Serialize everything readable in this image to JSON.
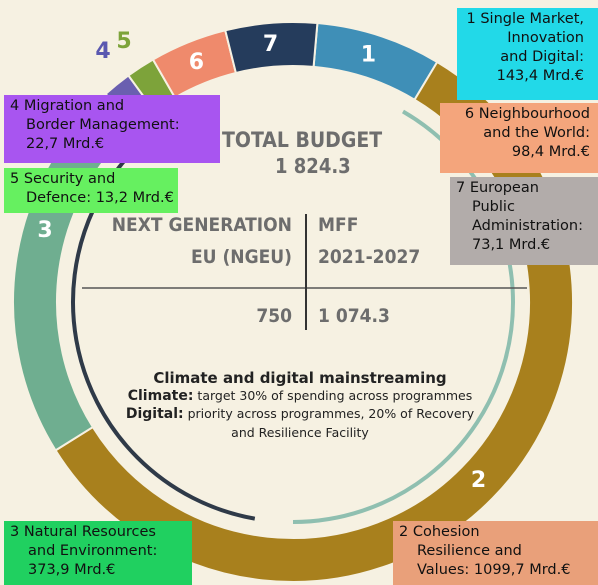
{
  "center": {
    "title": "TOTAL BUDGET",
    "total": "1 824.3",
    "left_head": [
      "NEXT GENERATION",
      "EU (NGEU)"
    ],
    "right_head": [
      "MFF",
      "2021-2027"
    ],
    "left_value": "750",
    "right_value": "1 074.3"
  },
  "mainstreaming": {
    "title": "Climate and digital mainstreaming",
    "climate_label": "Climate:",
    "climate_text": "target 30% of spending across programmes",
    "digital_label": "Digital:",
    "digital_text": "priority across programmes, 20% of Recovery",
    "digital_text2": "and Resilience Facility"
  },
  "segments": [
    {
      "number": "1",
      "lines": [
        "1 Single Market,",
        "Innovation",
        "and Digital:",
        "143,4 Mrd.€"
      ]
    },
    {
      "number": "2",
      "lines": [
        "2 Cohesion",
        "Resilience and",
        "Values:  1099,7 Mrd.€"
      ]
    },
    {
      "number": "3",
      "lines": [
        "3 Natural Resources",
        "and Environment:",
        "373,9 Mrd.€"
      ]
    },
    {
      "number": "4",
      "lines": [
        "4 Migration and",
        "Border Management:",
        "22,7 Mrd.€"
      ]
    },
    {
      "number": "5",
      "lines": [
        "5 Security and",
        "Defence: 13,2 Mrd.€"
      ]
    },
    {
      "number": "6",
      "lines": [
        "6 Neighbourhood",
        "and the World:",
        "98,4 Mrd.€"
      ]
    },
    {
      "number": "7",
      "lines": [
        "7 European",
        "Public",
        "Administration:",
        "73,1 Mrd.€"
      ]
    }
  ]
}
